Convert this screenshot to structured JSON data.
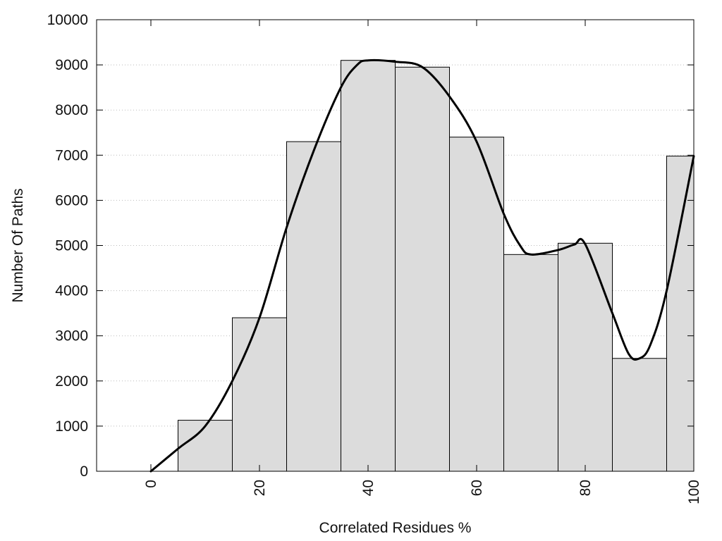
{
  "chart_data": {
    "type": "bar",
    "title": "",
    "xlabel": "Correlated Residues %",
    "ylabel": "Number Of Paths",
    "xlim": [
      -10,
      100
    ],
    "ylim": [
      0,
      10000
    ],
    "x_ticks": [
      0,
      20,
      40,
      60,
      80,
      100
    ],
    "y_ticks": [
      0,
      1000,
      2000,
      3000,
      4000,
      5000,
      6000,
      7000,
      8000,
      9000,
      10000
    ],
    "grid": "horizontal-dotted",
    "bin_width": 10,
    "x": [
      0,
      10,
      20,
      30,
      40,
      50,
      60,
      70,
      80,
      90,
      100
    ],
    "values": [
      0,
      1130,
      3400,
      7300,
      9100,
      8950,
      7400,
      4800,
      5050,
      2500,
      6980
    ],
    "smooth_curve": {
      "x": [
        0,
        5,
        10,
        15,
        20,
        25,
        30,
        35,
        38,
        40,
        45,
        50,
        55,
        60,
        65,
        68,
        70,
        75,
        78,
        80,
        85,
        88,
        90,
        92,
        95,
        100
      ],
      "y": [
        0,
        500,
        1000,
        2000,
        3400,
        5400,
        7100,
        8500,
        9000,
        9100,
        9070,
        8950,
        8300,
        7300,
        5700,
        5000,
        4800,
        4900,
        5020,
        5030,
        3500,
        2600,
        2500,
        2800,
        4000,
        6980
      ]
    },
    "colors": {
      "bar_fill": "#dcdcdc",
      "bar_stroke": "#000000",
      "curve": "#000000",
      "grid": "#bbbbbb"
    }
  }
}
